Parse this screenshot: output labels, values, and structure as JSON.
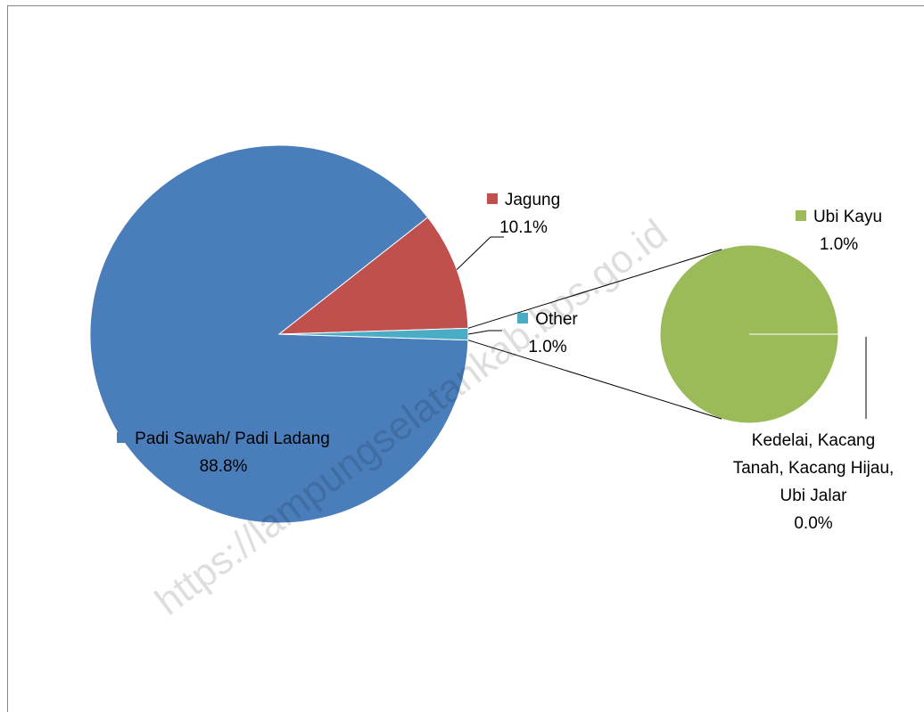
{
  "chart_data": {
    "type": "pie",
    "watermark": "https://lampungselatankab.bps.go.id",
    "categories": [
      "Padi Sawah/ Padi Ladang",
      "Jagung",
      "Other"
    ],
    "values": [
      88.8,
      10.1,
      1.0
    ],
    "value_labels": [
      "88.8%",
      "10.1%",
      "1.0%"
    ],
    "colors": [
      "#4a7ebb",
      "#c0504d",
      "#4bacc6"
    ],
    "secondary": {
      "categories": [
        "Ubi Kayu",
        "Kedelai, Kacang Tanah, Kacang Hijau, Ubi Jalar"
      ],
      "values": [
        1.0,
        0.0
      ],
      "value_labels": [
        "1.0%",
        "0.0%"
      ],
      "colors": [
        "#9bbb59",
        "#8064a2"
      ]
    }
  }
}
